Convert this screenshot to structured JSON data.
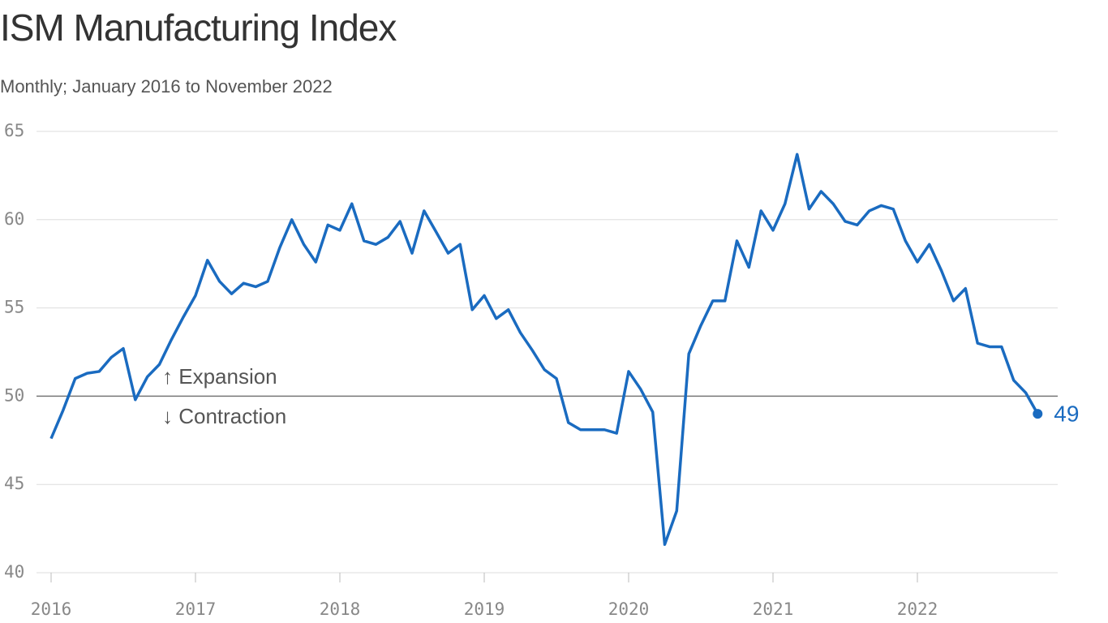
{
  "chart_data": {
    "type": "line",
    "title": "ISM Manufacturing Index",
    "subtitle": "Monthly; January 2016 to November 2022",
    "x": [
      2016.0,
      2016.083,
      2016.167,
      2016.25,
      2016.333,
      2016.417,
      2016.5,
      2016.583,
      2016.667,
      2016.75,
      2016.833,
      2016.917,
      2017.0,
      2017.083,
      2017.167,
      2017.25,
      2017.333,
      2017.417,
      2017.5,
      2017.583,
      2017.667,
      2017.75,
      2017.833,
      2017.917,
      2018.0,
      2018.083,
      2018.167,
      2018.25,
      2018.333,
      2018.417,
      2018.5,
      2018.583,
      2018.667,
      2018.75,
      2018.833,
      2018.917,
      2019.0,
      2019.083,
      2019.167,
      2019.25,
      2019.333,
      2019.417,
      2019.5,
      2019.583,
      2019.667,
      2019.75,
      2019.833,
      2019.917,
      2020.0,
      2020.083,
      2020.167,
      2020.25,
      2020.333,
      2020.417,
      2020.5,
      2020.583,
      2020.667,
      2020.75,
      2020.833,
      2020.917,
      2021.0,
      2021.083,
      2021.167,
      2021.25,
      2021.333,
      2021.417,
      2021.5,
      2021.583,
      2021.667,
      2021.75,
      2021.833,
      2021.917,
      2022.0,
      2022.083,
      2022.167,
      2022.25,
      2022.333,
      2022.417,
      2022.5,
      2022.583,
      2022.667,
      2022.75,
      2022.833
    ],
    "series": [
      {
        "name": "ISM Manufacturing Index",
        "color": "#1a6bc0",
        "values": [
          47.6,
          49.2,
          51.0,
          51.3,
          51.4,
          52.2,
          52.7,
          49.8,
          51.1,
          51.8,
          53.2,
          54.5,
          55.7,
          57.7,
          56.5,
          55.8,
          56.4,
          56.2,
          56.5,
          58.4,
          60.0,
          58.6,
          57.6,
          59.7,
          59.4,
          60.9,
          58.8,
          58.6,
          59.0,
          59.9,
          58.1,
          60.5,
          59.3,
          58.1,
          58.6,
          54.9,
          55.7,
          54.4,
          54.9,
          53.6,
          52.6,
          51.5,
          51.0,
          48.5,
          48.1,
          48.1,
          48.1,
          47.9,
          51.4,
          50.4,
          49.1,
          41.6,
          43.5,
          52.4,
          54.0,
          55.4,
          55.4,
          58.8,
          57.3,
          60.5,
          59.4,
          60.9,
          63.7,
          60.6,
          61.6,
          60.9,
          59.9,
          59.7,
          60.5,
          60.8,
          60.6,
          58.8,
          57.6,
          58.6,
          57.1,
          55.4,
          56.1,
          53.0,
          52.8,
          52.8,
          50.9,
          50.2,
          49
        ]
      }
    ],
    "xlim": [
      2016,
      2023
    ],
    "xticks": [
      2016,
      2017,
      2018,
      2019,
      2020,
      2021,
      2022
    ],
    "ylim": [
      40,
      65
    ],
    "yticks": [
      40,
      45,
      50,
      55,
      60,
      65
    ],
    "grid": true,
    "reference_line": 50,
    "annotations": [
      "↑ Expansion",
      "↓ Contraction"
    ]
  }
}
